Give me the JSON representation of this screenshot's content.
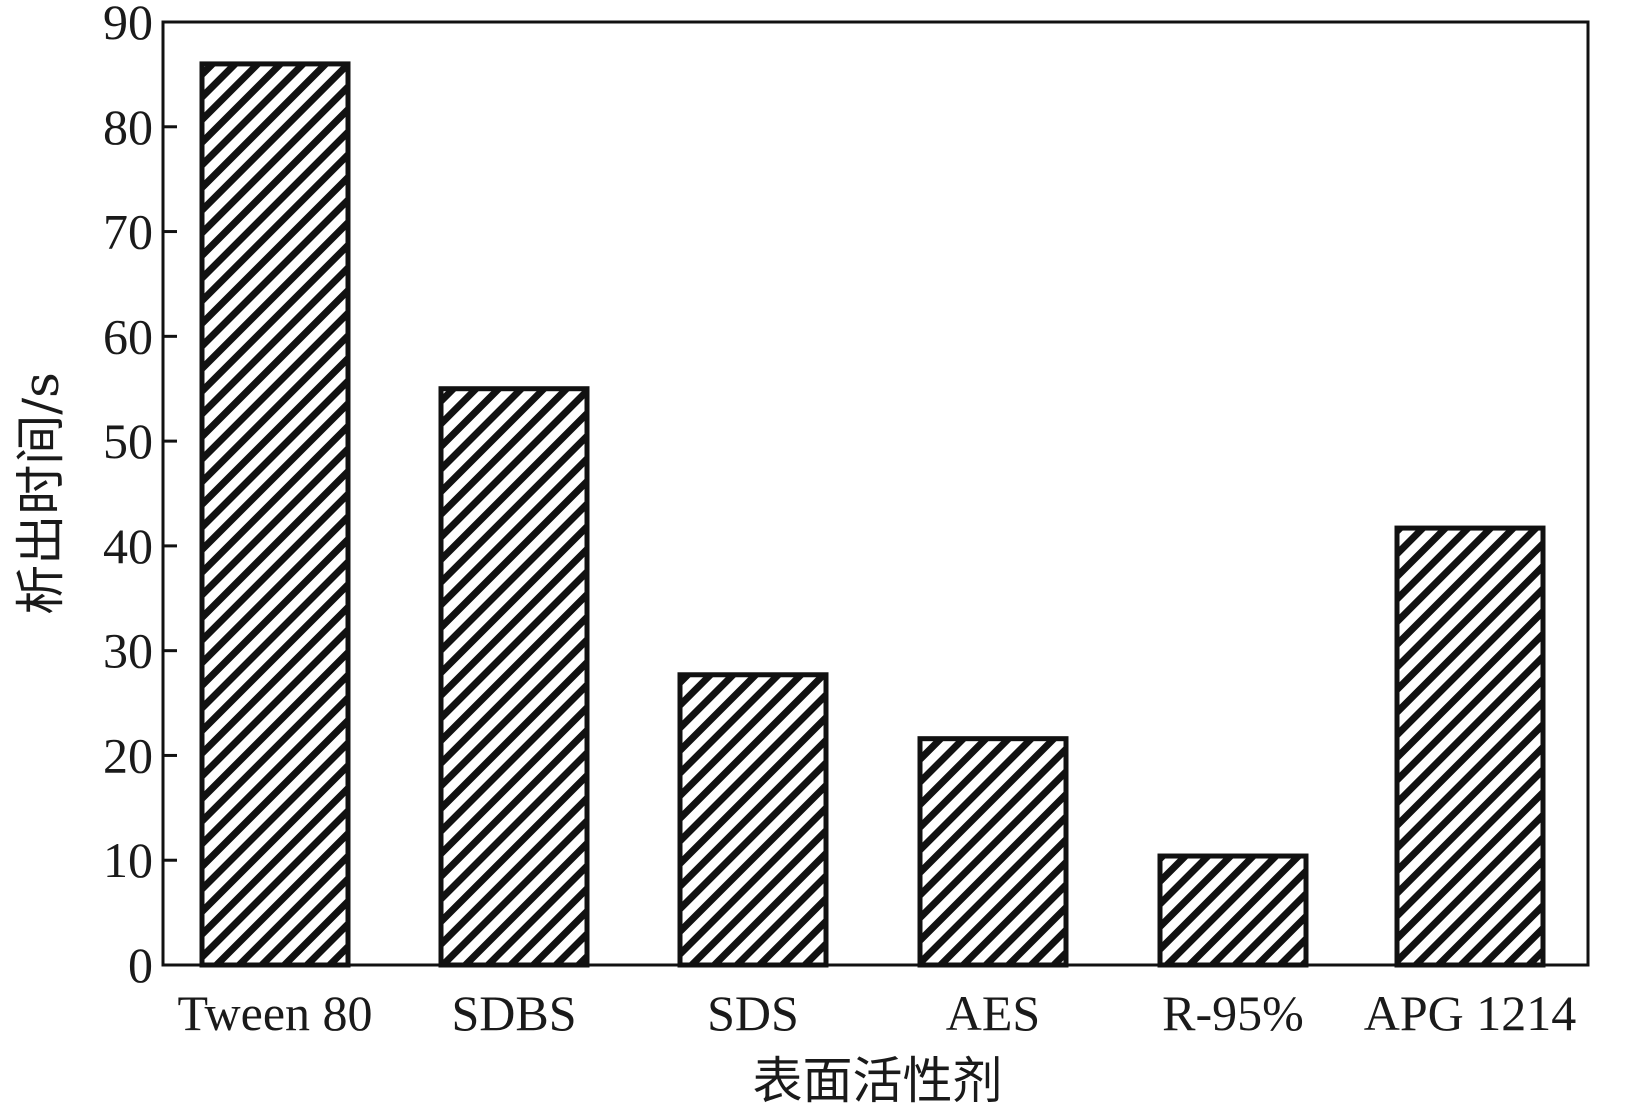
{
  "chart_data": {
    "type": "bar",
    "categories": [
      "Tween 80",
      "SDBS",
      "SDS",
      "AES",
      "R-95%",
      "APG 1214"
    ],
    "values": [
      86,
      55,
      27.7,
      21.6,
      10.4,
      41.7
    ],
    "xlabel": "表面活性剂",
    "ylabel": "析出时间/s",
    "ylim": [
      0,
      90
    ],
    "yticks": [
      0,
      10,
      20,
      30,
      40,
      50,
      60,
      70,
      80,
      90
    ],
    "grid": false,
    "legend": "none",
    "bar_fill": "diagonal-hatch",
    "colors": {
      "bar_edge": "#111111",
      "hatch": "#111111",
      "background": "#ffffff",
      "axis": "#111111"
    }
  }
}
